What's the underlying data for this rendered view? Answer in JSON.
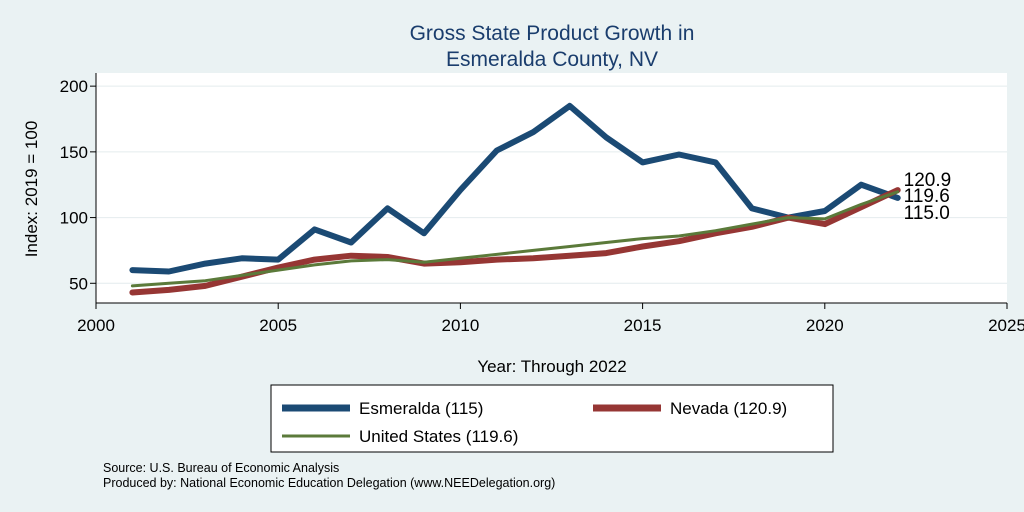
{
  "chart_data": {
    "type": "line",
    "title_lines": [
      "Gross State Product Growth in",
      "Esmeralda County, NV"
    ],
    "xlabel": "Year: Through 2022",
    "ylabel": "Index: 2019 = 100",
    "xlim": [
      2000,
      2025
    ],
    "ylim": [
      35,
      210
    ],
    "xticks": [
      2000,
      2005,
      2010,
      2015,
      2020,
      2025
    ],
    "yticks": [
      50,
      100,
      150,
      200
    ],
    "grid": true,
    "legend_position": "bottom",
    "x": [
      2001,
      2002,
      2003,
      2004,
      2005,
      2006,
      2007,
      2008,
      2009,
      2010,
      2011,
      2012,
      2013,
      2014,
      2015,
      2016,
      2017,
      2018,
      2019,
      2020,
      2021,
      2022
    ],
    "series": [
      {
        "name": "Esmeralda",
        "legend_label": "Esmeralda  (115)",
        "color": "#1b4a74",
        "end_label": "115.0",
        "values": [
          60,
          59,
          65,
          69,
          68,
          91,
          81,
          107,
          88,
          121,
          151,
          165,
          185,
          161,
          142,
          148,
          142,
          107,
          100,
          105,
          125,
          115
        ]
      },
      {
        "name": "Nevada",
        "legend_label": "Nevada (120.9)",
        "color": "#963634",
        "end_label": "120.9",
        "values": [
          43,
          45,
          48,
          55,
          62,
          68,
          71,
          70,
          65,
          66,
          68,
          69,
          71,
          73,
          78,
          82,
          88,
          93,
          100,
          95,
          108,
          120.9
        ]
      },
      {
        "name": "United States",
        "legend_label": "United States (119.6)",
        "color": "#5b7a3a",
        "end_label": "119.6",
        "values": [
          48,
          50,
          52,
          56,
          60,
          64,
          67,
          68,
          66,
          69,
          72,
          75,
          78,
          81,
          84,
          86,
          90,
          95,
          100,
          99,
          110,
          119.6
        ]
      }
    ]
  },
  "notes": {
    "source": "Source: U.S. Bureau of Economic Analysis",
    "produced_by": "Produced by: National Economic Education Delegation (www.NEEDelegation.org)"
  }
}
